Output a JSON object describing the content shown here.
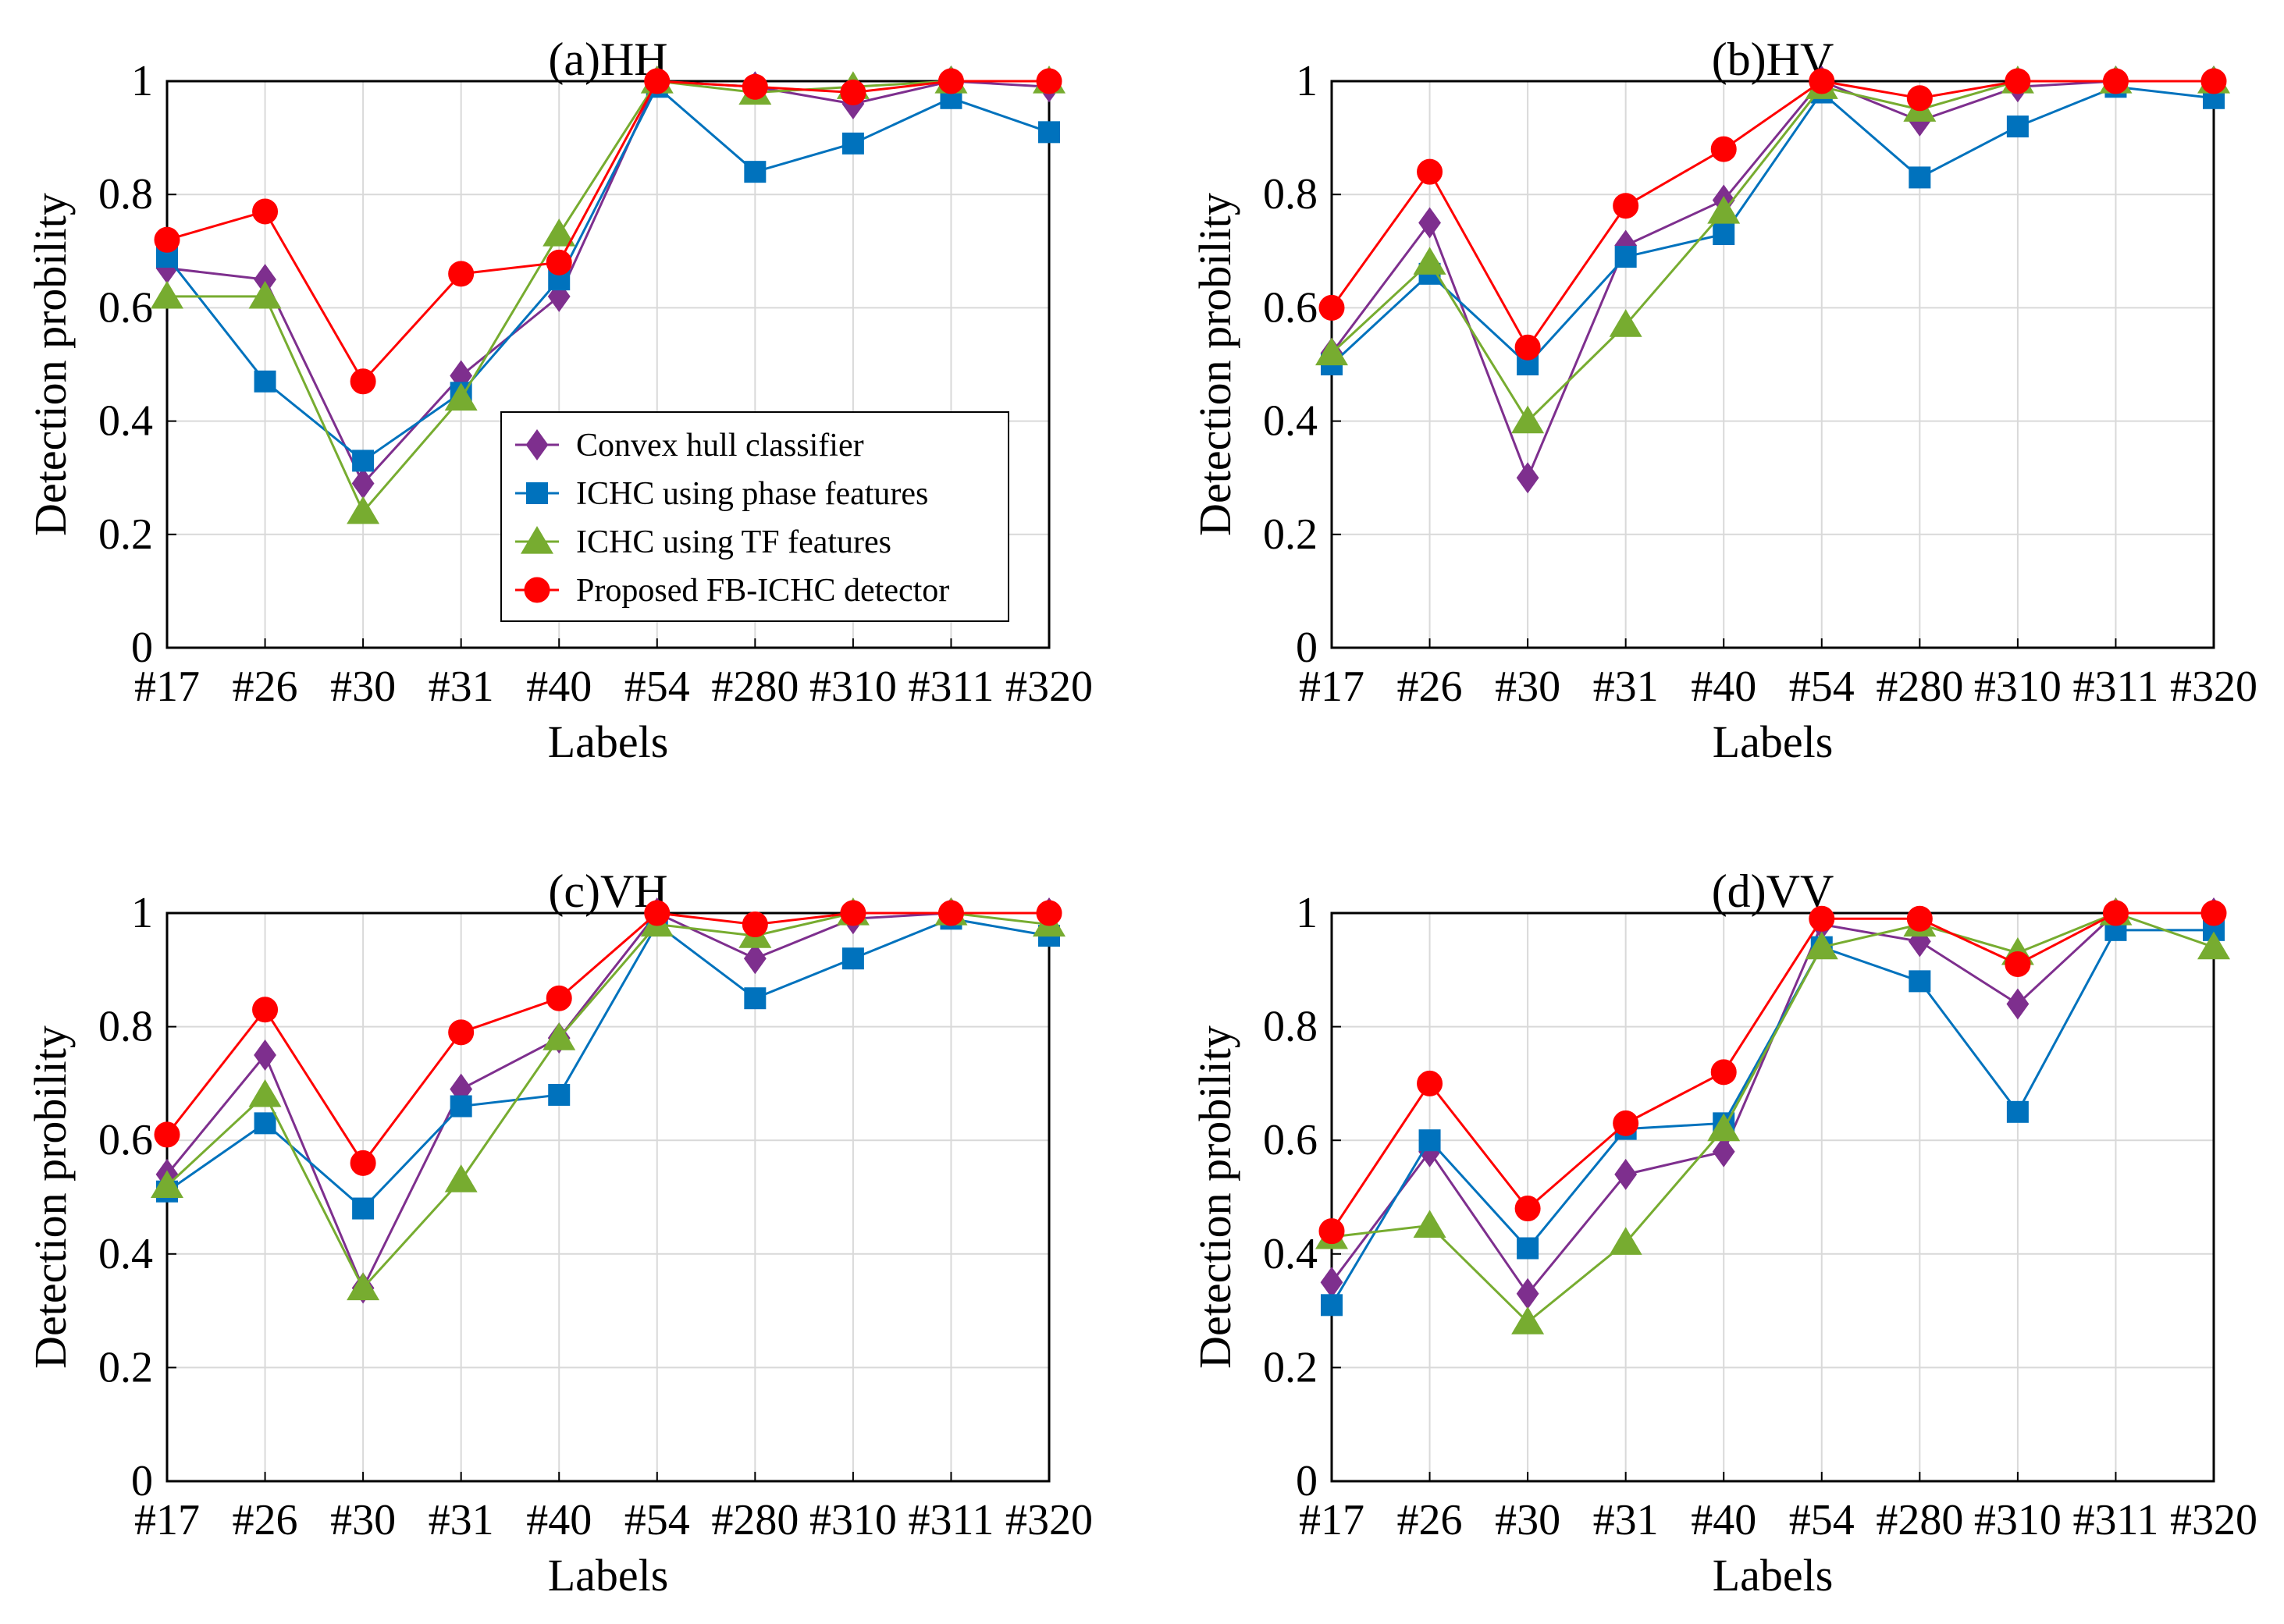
{
  "chart_data": [
    {
      "type": "line",
      "title": "(a)HH",
      "xlabel": "Labels",
      "ylabel": "Detection probility",
      "categories": [
        "#17",
        "#26",
        "#30",
        "#31",
        "#40",
        "#54",
        "#280",
        "#310",
        "#311",
        "#320"
      ],
      "ylim": [
        0,
        1
      ],
      "yticks": [
        "0",
        "0.2",
        "0.4",
        "0.6",
        "0.8",
        "1"
      ],
      "grid": true,
      "legend_position": "bottom-right",
      "series": [
        {
          "name": "Convex hull classifier",
          "marker": "diamond",
          "color": "#7e2f8e",
          "values": [
            0.67,
            0.65,
            0.29,
            0.48,
            0.62,
            1.0,
            0.99,
            0.96,
            1.0,
            0.99
          ]
        },
        {
          "name": "ICHC using phase features",
          "marker": "square",
          "color": "#0072bd",
          "values": [
            0.69,
            0.47,
            0.33,
            0.45,
            0.65,
            0.99,
            0.84,
            0.89,
            0.97,
            0.91
          ]
        },
        {
          "name": "ICHC using TF features",
          "marker": "triangle",
          "color": "#77ac30",
          "values": [
            0.62,
            0.62,
            0.24,
            0.44,
            0.73,
            1.0,
            0.98,
            0.99,
            1.0,
            1.0
          ]
        },
        {
          "name": "Proposed FB-ICHC detector",
          "marker": "circle",
          "color": "#ff0000",
          "values": [
            0.72,
            0.77,
            0.47,
            0.66,
            0.68,
            1.0,
            0.99,
            0.98,
            1.0,
            1.0
          ]
        }
      ]
    },
    {
      "type": "line",
      "title": "(b)HV",
      "xlabel": "Labels",
      "ylabel": "Detection probility",
      "categories": [
        "#17",
        "#26",
        "#30",
        "#31",
        "#40",
        "#54",
        "#280",
        "#310",
        "#311",
        "#320"
      ],
      "ylim": [
        0,
        1
      ],
      "yticks": [
        "0",
        "0.2",
        "0.4",
        "0.6",
        "0.8",
        "1"
      ],
      "grid": true,
      "series": [
        {
          "name": "Convex hull classifier",
          "marker": "diamond",
          "color": "#7e2f8e",
          "values": [
            0.52,
            0.75,
            0.3,
            0.71,
            0.79,
            1.0,
            0.93,
            0.99,
            1.0,
            1.0
          ]
        },
        {
          "name": "ICHC using phase features",
          "marker": "square",
          "color": "#0072bd",
          "values": [
            0.5,
            0.66,
            0.5,
            0.69,
            0.73,
            0.98,
            0.83,
            0.92,
            0.99,
            0.97
          ]
        },
        {
          "name": "ICHC using TF features",
          "marker": "triangle",
          "color": "#77ac30",
          "values": [
            0.52,
            0.68,
            0.4,
            0.57,
            0.77,
            0.99,
            0.95,
            1.0,
            1.0,
            1.0
          ]
        },
        {
          "name": "Proposed FB-ICHC detector",
          "marker": "circle",
          "color": "#ff0000",
          "values": [
            0.6,
            0.84,
            0.53,
            0.78,
            0.88,
            1.0,
            0.97,
            1.0,
            1.0,
            1.0
          ]
        }
      ]
    },
    {
      "type": "line",
      "title": "(c)VH",
      "xlabel": "Labels",
      "ylabel": "Detection probility",
      "categories": [
        "#17",
        "#26",
        "#30",
        "#31",
        "#40",
        "#54",
        "#280",
        "#310",
        "#311",
        "#320"
      ],
      "ylim": [
        0,
        1
      ],
      "yticks": [
        "0",
        "0.2",
        "0.4",
        "0.6",
        "0.8",
        "1"
      ],
      "grid": true,
      "series": [
        {
          "name": "Convex hull classifier",
          "marker": "diamond",
          "color": "#7e2f8e",
          "values": [
            0.54,
            0.75,
            0.34,
            0.69,
            0.78,
            1.0,
            0.92,
            0.99,
            1.0,
            1.0
          ]
        },
        {
          "name": "ICHC using phase features",
          "marker": "square",
          "color": "#0072bd",
          "values": [
            0.51,
            0.63,
            0.48,
            0.66,
            0.68,
            0.98,
            0.85,
            0.92,
            0.99,
            0.96
          ]
        },
        {
          "name": "ICHC using TF features",
          "marker": "triangle",
          "color": "#77ac30",
          "values": [
            0.52,
            0.68,
            0.34,
            0.53,
            0.78,
            0.98,
            0.96,
            1.0,
            1.0,
            0.98
          ]
        },
        {
          "name": "Proposed FB-ICHC detector",
          "marker": "circle",
          "color": "#ff0000",
          "values": [
            0.61,
            0.83,
            0.56,
            0.79,
            0.85,
            1.0,
            0.98,
            1.0,
            1.0,
            1.0
          ]
        }
      ]
    },
    {
      "type": "line",
      "title": "(d)VV",
      "xlabel": "Labels",
      "ylabel": "Detection probility",
      "categories": [
        "#17",
        "#26",
        "#30",
        "#31",
        "#40",
        "#54",
        "#280",
        "#310",
        "#311",
        "#320"
      ],
      "ylim": [
        0,
        1
      ],
      "yticks": [
        "0",
        "0.2",
        "0.4",
        "0.6",
        "0.8",
        "1"
      ],
      "grid": true,
      "series": [
        {
          "name": "Convex hull classifier",
          "marker": "diamond",
          "color": "#7e2f8e",
          "values": [
            0.35,
            0.58,
            0.33,
            0.54,
            0.58,
            0.98,
            0.95,
            0.84,
            1.0,
            1.0
          ]
        },
        {
          "name": "ICHC using phase features",
          "marker": "square",
          "color": "#0072bd",
          "values": [
            0.31,
            0.6,
            0.41,
            0.62,
            0.63,
            0.94,
            0.88,
            0.65,
            0.97,
            0.97
          ]
        },
        {
          "name": "ICHC using TF features",
          "marker": "triangle",
          "color": "#77ac30",
          "values": [
            0.43,
            0.45,
            0.28,
            0.42,
            0.62,
            0.94,
            0.98,
            0.93,
            1.0,
            0.94
          ]
        },
        {
          "name": "Proposed FB-ICHC detector",
          "marker": "circle",
          "color": "#ff0000",
          "values": [
            0.44,
            0.7,
            0.48,
            0.63,
            0.72,
            0.99,
            0.99,
            0.91,
            1.0,
            1.0
          ]
        }
      ]
    }
  ]
}
